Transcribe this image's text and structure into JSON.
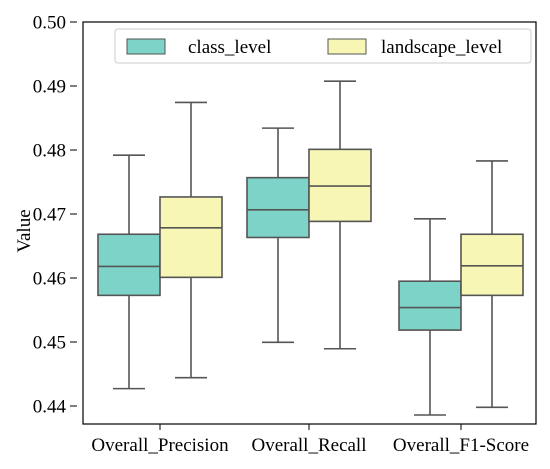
{
  "chart_data": {
    "type": "box",
    "xlabel": "",
    "ylabel": "Value",
    "ylim": [
      0.4375,
      0.5
    ],
    "yticks": [
      "0.44",
      "0.45",
      "0.46",
      "0.47",
      "0.48",
      "0.49",
      "0.50"
    ],
    "categories": [
      "Overall_Precision",
      "Overall_Recall",
      "Overall_F1-Score"
    ],
    "legend_position": "top",
    "grid": false,
    "series": [
      {
        "name": "class_level",
        "color": "#7dd3c8",
        "boxes": [
          {
            "whisker_low": 0.443,
            "q1": 0.4575,
            "median": 0.462,
            "q3": 0.467,
            "whisker_high": 0.4793
          },
          {
            "whisker_low": 0.4502,
            "q1": 0.4665,
            "median": 0.4708,
            "q3": 0.4758,
            "whisker_high": 0.4835
          },
          {
            "whisker_low": 0.4389,
            "q1": 0.4521,
            "median": 0.4556,
            "q3": 0.4597,
            "whisker_high": 0.4694
          }
        ]
      },
      {
        "name": "landscape_level",
        "color": "#f8f6b4",
        "boxes": [
          {
            "whisker_low": 0.4447,
            "q1": 0.4603,
            "median": 0.468,
            "q3": 0.4728,
            "whisker_high": 0.4875
          },
          {
            "whisker_low": 0.4492,
            "q1": 0.469,
            "median": 0.4745,
            "q3": 0.4802,
            "whisker_high": 0.4908
          },
          {
            "whisker_low": 0.4401,
            "q1": 0.4575,
            "median": 0.4621,
            "q3": 0.467,
            "whisker_high": 0.4784
          }
        ]
      }
    ]
  }
}
